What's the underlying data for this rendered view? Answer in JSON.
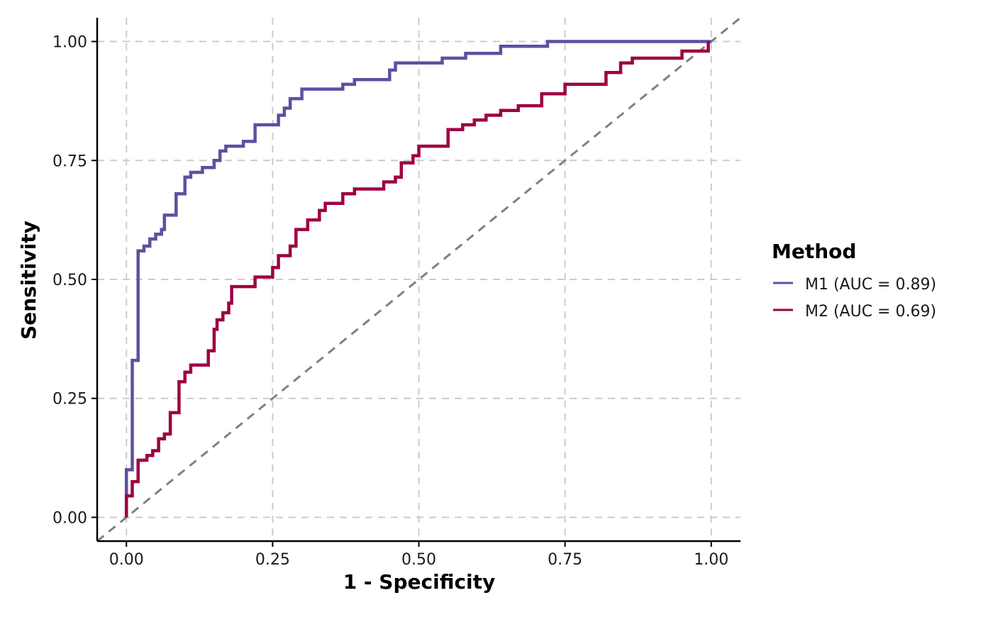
{
  "chart_data": {
    "type": "line",
    "title": "",
    "xlabel": "1 - Specificity",
    "ylabel": "Sensitivity",
    "xlim": [
      -0.05,
      1.05
    ],
    "ylim": [
      -0.05,
      1.05
    ],
    "x_ticks": [
      0,
      0.25,
      0.5,
      0.75,
      1
    ],
    "x_tick_labels": [
      "0.00",
      "0.25",
      "0.50",
      "0.75",
      "1.00"
    ],
    "y_ticks": [
      0,
      0.25,
      0.5,
      0.75,
      1
    ],
    "y_tick_labels": [
      "0.00",
      "0.25",
      "0.50",
      "0.75",
      "1.00"
    ],
    "grid": true,
    "diagonal_reference": true,
    "legend": {
      "title": "Method",
      "position": "right"
    },
    "series": [
      {
        "name": "M1 (AUC = 0.89)",
        "color": "#5E4FA2",
        "step": true,
        "x": [
          0,
          0,
          0.01,
          0.01,
          0.02,
          0.02,
          0.03,
          0.03,
          0.04,
          0.04,
          0.05,
          0.05,
          0.06,
          0.06,
          0.065,
          0.065,
          0.085,
          0.085,
          0.1,
          0.1,
          0.11,
          0.11,
          0.13,
          0.13,
          0.15,
          0.15,
          0.16,
          0.16,
          0.17,
          0.17,
          0.2,
          0.2,
          0.22,
          0.22,
          0.26,
          0.26,
          0.27,
          0.27,
          0.28,
          0.28,
          0.3,
          0.3,
          0.37,
          0.37,
          0.39,
          0.39,
          0.45,
          0.45,
          0.46,
          0.46,
          0.54,
          0.54,
          0.58,
          0.58,
          0.64,
          0.64,
          0.72,
          0.72,
          1
        ],
        "y": [
          0,
          0.1,
          0.1,
          0.33,
          0.33,
          0.56,
          0.56,
          0.57,
          0.57,
          0.585,
          0.585,
          0.595,
          0.595,
          0.605,
          0.605,
          0.635,
          0.635,
          0.68,
          0.68,
          0.715,
          0.715,
          0.725,
          0.725,
          0.735,
          0.735,
          0.75,
          0.75,
          0.77,
          0.77,
          0.78,
          0.78,
          0.79,
          0.79,
          0.825,
          0.825,
          0.845,
          0.845,
          0.86,
          0.86,
          0.88,
          0.88,
          0.9,
          0.9,
          0.91,
          0.91,
          0.92,
          0.92,
          0.94,
          0.94,
          0.955,
          0.955,
          0.965,
          0.965,
          0.975,
          0.975,
          0.99,
          0.99,
          1,
          1
        ]
      },
      {
        "name": "M2 (AUC = 0.69)",
        "color": "#9E0142",
        "step": true,
        "x": [
          0,
          0,
          0.01,
          0.01,
          0.02,
          0.02,
          0.035,
          0.035,
          0.045,
          0.045,
          0.055,
          0.055,
          0.065,
          0.065,
          0.075,
          0.075,
          0.09,
          0.09,
          0.1,
          0.1,
          0.11,
          0.11,
          0.14,
          0.14,
          0.15,
          0.15,
          0.155,
          0.155,
          0.165,
          0.165,
          0.175,
          0.175,
          0.18,
          0.18,
          0.22,
          0.22,
          0.25,
          0.25,
          0.26,
          0.26,
          0.28,
          0.28,
          0.29,
          0.29,
          0.31,
          0.31,
          0.33,
          0.33,
          0.34,
          0.34,
          0.37,
          0.37,
          0.39,
          0.39,
          0.44,
          0.44,
          0.46,
          0.46,
          0.47,
          0.47,
          0.49,
          0.49,
          0.5,
          0.5,
          0.55,
          0.55,
          0.575,
          0.575,
          0.595,
          0.595,
          0.615,
          0.615,
          0.64,
          0.64,
          0.67,
          0.67,
          0.71,
          0.71,
          0.75,
          0.75,
          0.82,
          0.82,
          0.845,
          0.845,
          0.865,
          0.865,
          0.95,
          0.95,
          0.995,
          0.995
        ],
        "y": [
          0,
          0.045,
          0.045,
          0.075,
          0.075,
          0.12,
          0.12,
          0.13,
          0.13,
          0.14,
          0.14,
          0.165,
          0.165,
          0.175,
          0.175,
          0.22,
          0.22,
          0.285,
          0.285,
          0.305,
          0.305,
          0.32,
          0.32,
          0.35,
          0.35,
          0.395,
          0.395,
          0.415,
          0.415,
          0.43,
          0.43,
          0.45,
          0.45,
          0.485,
          0.485,
          0.505,
          0.505,
          0.525,
          0.525,
          0.55,
          0.55,
          0.57,
          0.57,
          0.605,
          0.605,
          0.625,
          0.625,
          0.645,
          0.645,
          0.66,
          0.66,
          0.68,
          0.68,
          0.69,
          0.69,
          0.705,
          0.705,
          0.715,
          0.715,
          0.745,
          0.745,
          0.76,
          0.76,
          0.78,
          0.78,
          0.815,
          0.815,
          0.825,
          0.825,
          0.835,
          0.835,
          0.845,
          0.845,
          0.855,
          0.855,
          0.865,
          0.865,
          0.89,
          0.89,
          0.91,
          0.91,
          0.935,
          0.935,
          0.955,
          0.955,
          0.965,
          0.965,
          0.98,
          0.98,
          1
        ]
      }
    ]
  }
}
